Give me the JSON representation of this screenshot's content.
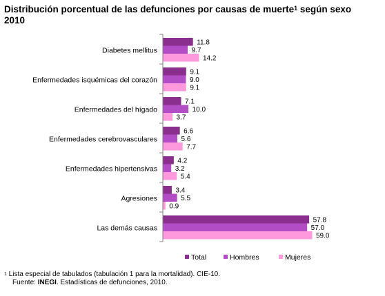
{
  "title": {
    "line1": "Distribución porcentual de las defunciones por causas de muerte",
    "sup": "1",
    "line1_end": " según sexo",
    "line2": "2010"
  },
  "chart_data": {
    "type": "bar",
    "orientation": "horizontal",
    "categories": [
      "Diabetes mellitus",
      "Enfermedades isquémicas del corazón",
      "Enfermedades del hígado",
      "Enfermedades cerebrovasculares",
      "Enfermedades hipertensivas",
      "Agresiones",
      "Las demás causas"
    ],
    "series": [
      {
        "name": "Total",
        "color": "#8B2F8F",
        "values": [
          11.8,
          9.1,
          7.1,
          6.6,
          4.2,
          3.4,
          57.8
        ]
      },
      {
        "name": "Hombres",
        "color": "#B24DC6",
        "values": [
          9.7,
          9.0,
          10.0,
          5.6,
          3.2,
          5.5,
          57.0
        ]
      },
      {
        "name": "Mujeres",
        "color": "#FF99DD",
        "values": [
          14.2,
          9.1,
          3.7,
          7.7,
          5.4,
          0.9,
          59.0
        ]
      }
    ],
    "xlim": [
      0,
      60
    ],
    "grid": false,
    "legend": "bottom"
  },
  "footnote": {
    "sup": "1",
    "text": " Lista especial de tabulados (tabulación 1 para la mortalidad). CIE-10.",
    "source_prefix": "Fuente: ",
    "source_bold": "INEGI",
    "source_rest": ". Estadísticas de defunciones, 2010."
  }
}
